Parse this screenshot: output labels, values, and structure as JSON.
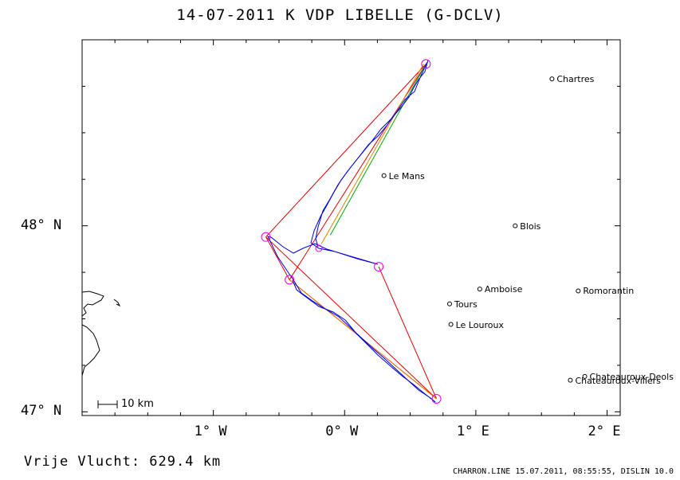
{
  "title": "14-07-2011    K VDP    LIBELLE (G-DCLV)",
  "axes": {
    "y_ticks": [
      {
        "label": "48° N",
        "value": 48
      },
      {
        "label": "47° N",
        "value": 47
      }
    ],
    "x_ticks": [
      {
        "label": "1° W",
        "value": -1
      },
      {
        "label": "0° W",
        "value": 0
      },
      {
        "label": "1° E",
        "value": 1
      },
      {
        "label": "2° E",
        "value": 2
      }
    ],
    "lon_range": [
      -2.0,
      2.1
    ],
    "lat_range": [
      46.98,
      49.0
    ]
  },
  "cities": [
    {
      "name": "Chartres",
      "lon": 1.58,
      "lat": 48.79
    },
    {
      "name": "Le Mans",
      "lon": 0.3,
      "lat": 48.27
    },
    {
      "name": "Blois",
      "lon": 1.3,
      "lat": 48.0
    },
    {
      "name": "Amboise",
      "lon": 1.03,
      "lat": 47.66
    },
    {
      "name": "Romorantin",
      "lon": 1.78,
      "lat": 47.65
    },
    {
      "name": "Tours",
      "lon": 0.8,
      "lat": 47.58
    },
    {
      "name": "Le Louroux",
      "lon": 0.81,
      "lat": 47.47
    },
    {
      "name": "Chateauroux-Deols",
      "lon": 1.83,
      "lat": 47.19
    },
    {
      "name": "Chateauroux-Villers",
      "lon": 1.72,
      "lat": 47.17
    }
  ],
  "turnpoints": [
    {
      "lon": 0.62,
      "lat": 48.87
    },
    {
      "lon": -0.6,
      "lat": 47.94
    },
    {
      "lon": -0.42,
      "lat": 47.71
    },
    {
      "lon": 0.7,
      "lat": 47.07
    },
    {
      "lon": 0.26,
      "lat": 47.78
    }
  ],
  "scale_bar": {
    "label": "10 km"
  },
  "distance_label": "Vrije Vlucht:  629.4 km",
  "footer": "CHARRON.LINE 15.07.2011, 08:55:55, DISLIN 10.0",
  "colors": {
    "track": "#0000dd",
    "leg_red": "#dd0000",
    "leg_orange": "#e08000",
    "leg_green": "#00aa00",
    "turnpoint": "#e000e0"
  }
}
